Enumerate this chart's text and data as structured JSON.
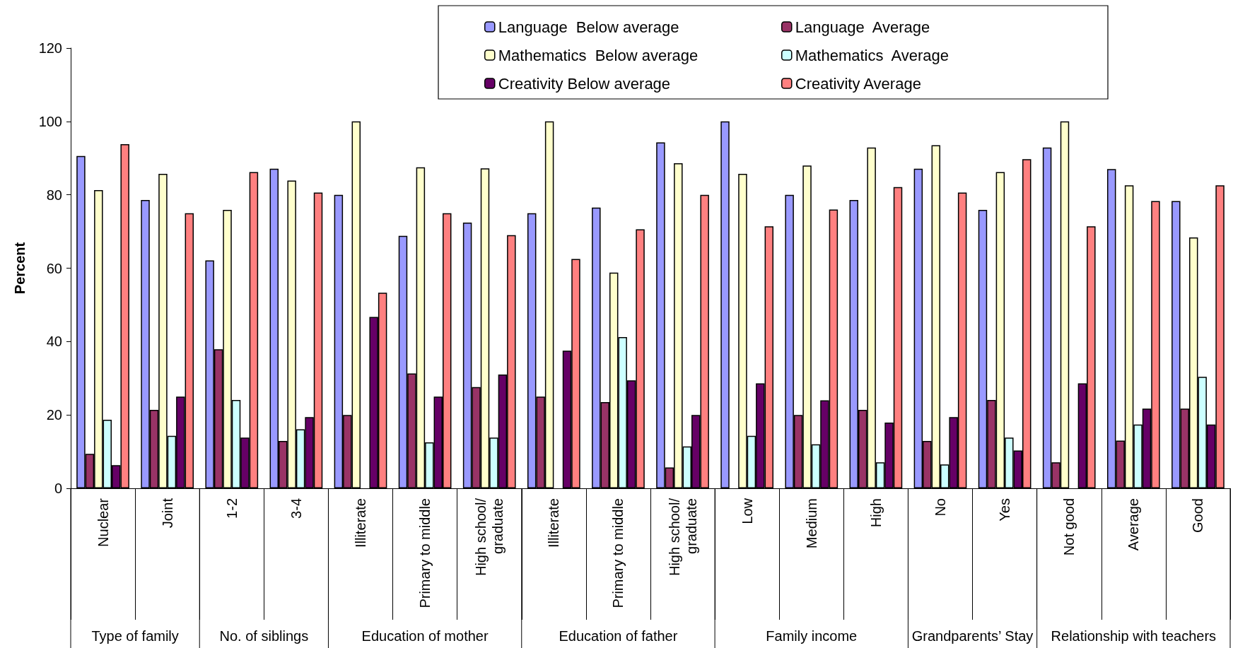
{
  "chart_data": {
    "type": "bar",
    "ylabel": "Percent",
    "ylim": [
      0,
      120
    ],
    "yticks": [
      0,
      20,
      40,
      60,
      80,
      100,
      120
    ],
    "grid": false,
    "legend": "top right",
    "categories": [
      "Nuclear",
      "Joint",
      "1-2",
      "3-4",
      "Illiterate",
      "Primary to middle",
      "High school/\ngraduate",
      "Illiterate",
      "Primary to middle",
      "High school/\ngraduate",
      "Low",
      "Medium",
      "High",
      "No",
      "Yes",
      "Not good",
      "Average",
      "Good"
    ],
    "annotations": [
      "Type of family",
      "No. of siblings",
      "Education of mother",
      "Education of father",
      "Family income",
      "Grandparents’ Stay",
      "Relationship with teachers"
    ],
    "series": [
      {
        "name": "Language  Below average",
        "color": "#9999ff",
        "values": [
          90.6,
          78.6,
          62.1,
          87.1,
          80,
          68.8,
          72.4,
          75,
          76.5,
          94.3,
          100,
          80,
          78.6,
          87.1,
          75.9,
          92.9,
          87,
          78.3
        ]
      },
      {
        "name": "Language  Average",
        "color": "#993366",
        "values": [
          9.4,
          21.4,
          37.9,
          12.9,
          20,
          31.3,
          27.6,
          25,
          23.5,
          5.7,
          null,
          20,
          21.4,
          12.9,
          24.1,
          7.1,
          13,
          21.7
        ]
      },
      {
        "name": "Mathematics  Below average",
        "color": "#ffffcc",
        "values": [
          81.3,
          85.7,
          75.9,
          83.9,
          100,
          87.5,
          87.2,
          100,
          58.8,
          88.6,
          85.7,
          88,
          92.9,
          93.5,
          86.2,
          100,
          82.6,
          68.4
        ]
      },
      {
        "name": "Mathematics  Average",
        "color": "#ccffff",
        "values": [
          18.7,
          14.3,
          24.1,
          16.1,
          null,
          12.5,
          13.8,
          null,
          41.2,
          11.4,
          14.3,
          12,
          7.1,
          6.5,
          13.8,
          null,
          17.4,
          30.4
        ]
      },
      {
        "name": "Creativity Below average",
        "color": "#660066",
        "values": [
          6.3,
          25,
          13.8,
          19.4,
          46.7,
          25,
          31,
          37.5,
          29.4,
          20,
          28.6,
          24,
          17.9,
          19.4,
          10.3,
          28.6,
          21.7,
          17.4
        ]
      },
      {
        "name": "Creativity Average",
        "color": "#ff8080",
        "values": [
          93.8,
          75,
          86.2,
          80.6,
          53.3,
          75,
          69,
          62.5,
          70.6,
          80,
          71.4,
          76,
          82.1,
          80.6,
          89.7,
          71.4,
          78.3,
          82.6
        ]
      }
    ]
  }
}
